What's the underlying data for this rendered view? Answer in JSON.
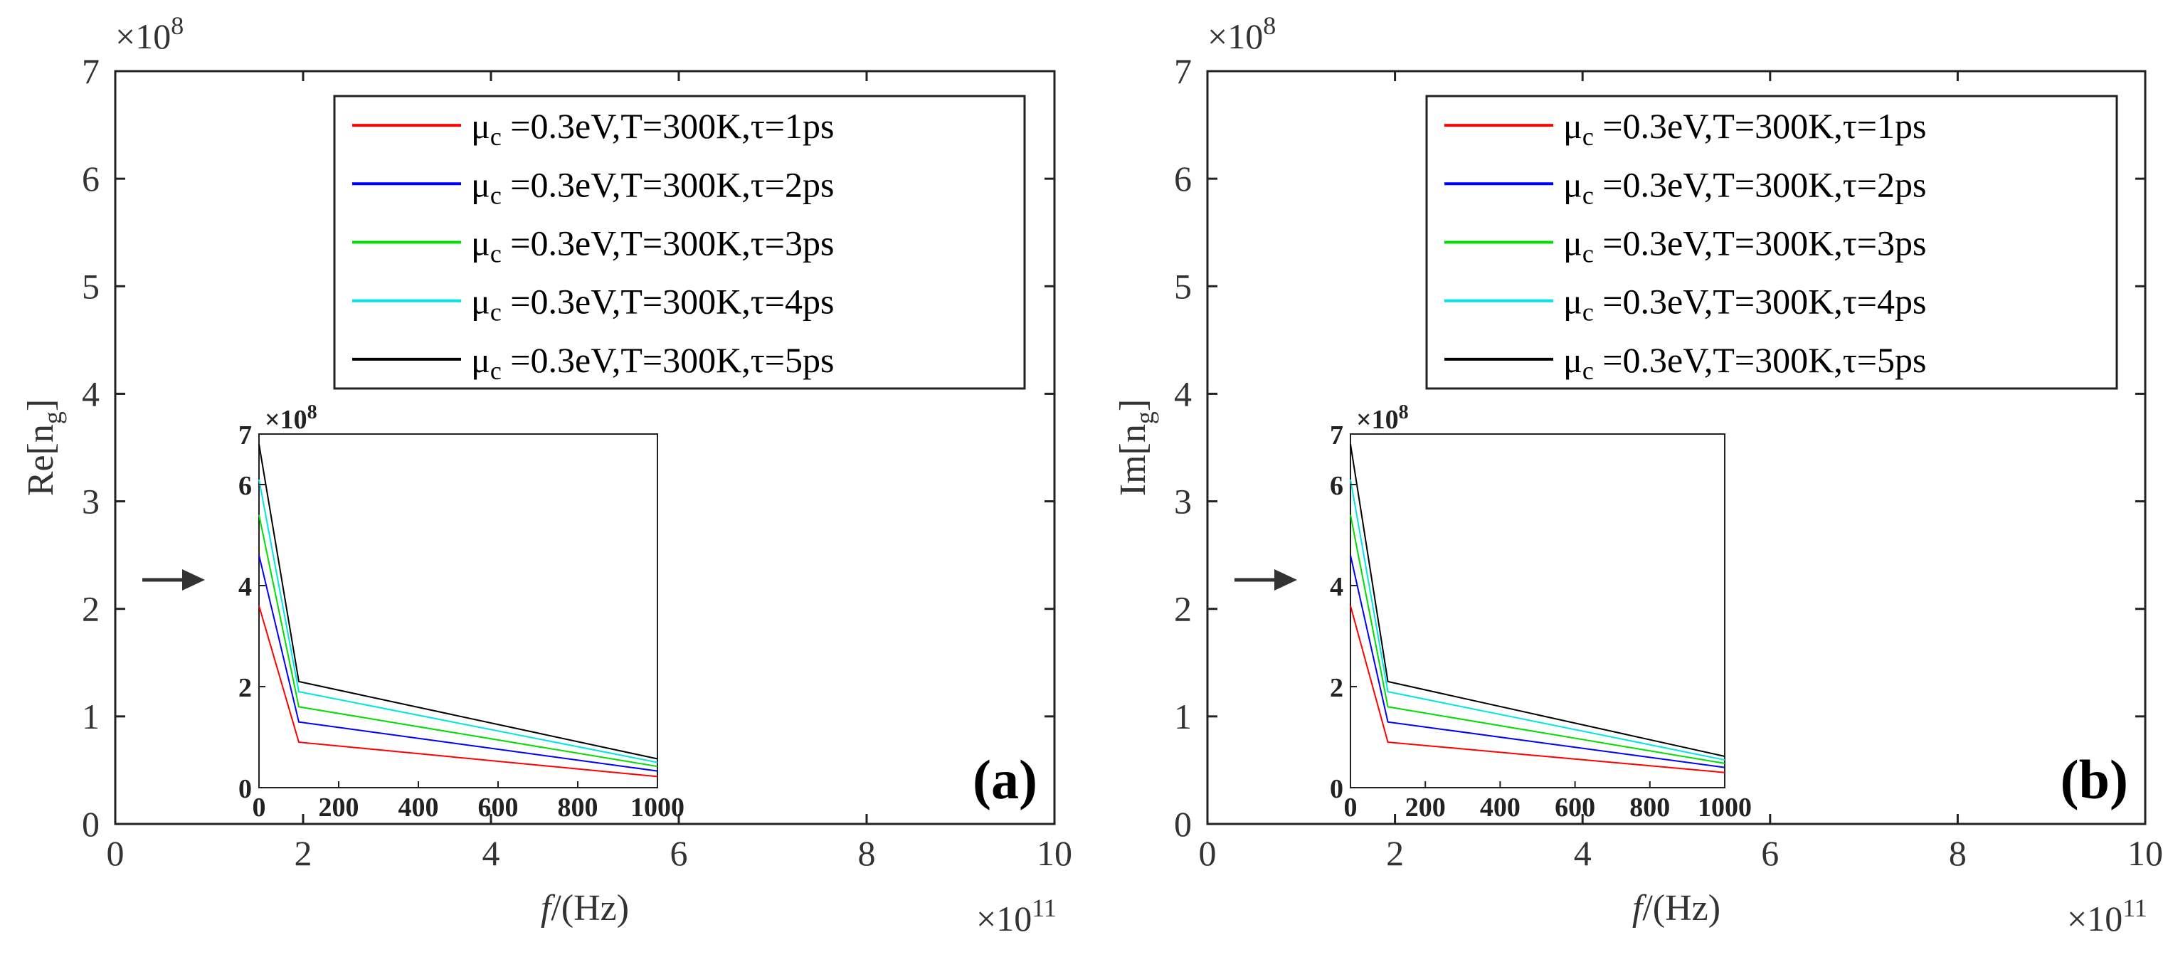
{
  "chart_data": [
    {
      "type": "line",
      "panel_label": "(a)",
      "ylabel": "Re[n",
      "ylabel_sub": "g",
      "ylabel_close": "]",
      "xlabel_italic": "f",
      "xlabel_rest": "/(Hz)",
      "x_exponent_text": "×10",
      "x_exponent_power": "11",
      "y_exponent_text": "×10",
      "y_exponent_power": "8",
      "xlim": [
        0,
        10
      ],
      "ylim": [
        0,
        7
      ],
      "xticks": [
        "0",
        "2",
        "4",
        "6",
        "8",
        "10"
      ],
      "yticks": [
        "0",
        "1",
        "2",
        "3",
        "4",
        "5",
        "6",
        "7"
      ],
      "series": [],
      "inset": {
        "xlim": [
          0,
          1000
        ],
        "ylim": [
          0,
          7
        ],
        "xticks": [
          "0",
          "200",
          "400",
          "600",
          "800",
          "1000"
        ],
        "yticks": [
          "0",
          "2",
          "4",
          "6",
          "7"
        ],
        "y_exponent_text": "×10",
        "y_exponent_power": "8",
        "x": [
          0,
          100,
          1000
        ],
        "series": [
          {
            "name": "τ=1ps",
            "color": "#ff0000",
            "values": [
              3.6,
              0.9,
              0.22
            ]
          },
          {
            "name": "τ=2ps",
            "color": "#0000ff",
            "values": [
              4.6,
              1.3,
              0.33
            ]
          },
          {
            "name": "τ=3ps",
            "color": "#00dd00",
            "values": [
              5.4,
              1.6,
              0.42
            ]
          },
          {
            "name": "τ=4ps",
            "color": "#00e5e5",
            "values": [
              6.1,
              1.9,
              0.5
            ]
          },
          {
            "name": "τ=5ps",
            "color": "#000000",
            "values": [
              6.8,
              2.1,
              0.57
            ]
          }
        ]
      }
    },
    {
      "type": "line",
      "panel_label": "(b)",
      "ylabel": "Im[n",
      "ylabel_sub": "g",
      "ylabel_close": "]",
      "xlabel_italic": "f",
      "xlabel_rest": "/(Hz)",
      "x_exponent_text": "×10",
      "x_exponent_power": "11",
      "y_exponent_text": "×10",
      "y_exponent_power": "8",
      "xlim": [
        0,
        10
      ],
      "ylim": [
        0,
        7
      ],
      "xticks": [
        "0",
        "2",
        "4",
        "6",
        "8",
        "10"
      ],
      "yticks": [
        "0",
        "1",
        "2",
        "3",
        "4",
        "5",
        "6",
        "7"
      ],
      "series": [],
      "inset": {
        "xlim": [
          0,
          1000
        ],
        "ylim": [
          0,
          7
        ],
        "xticks": [
          "0",
          "200",
          "400",
          "600",
          "800",
          "1000"
        ],
        "yticks": [
          "0",
          "2",
          "4",
          "6",
          "7"
        ],
        "y_exponent_text": "×10",
        "y_exponent_power": "8",
        "x": [
          0,
          100,
          1000
        ],
        "series": [
          {
            "name": "τ=1ps",
            "color": "#ff0000",
            "values": [
              3.6,
              0.9,
              0.3
            ]
          },
          {
            "name": "τ=2ps",
            "color": "#0000ff",
            "values": [
              4.6,
              1.3,
              0.4
            ]
          },
          {
            "name": "τ=3ps",
            "color": "#00dd00",
            "values": [
              5.4,
              1.6,
              0.48
            ]
          },
          {
            "name": "τ=4ps",
            "color": "#00e5e5",
            "values": [
              6.1,
              1.9,
              0.55
            ]
          },
          {
            "name": "τ=5ps",
            "color": "#000000",
            "values": [
              6.8,
              2.1,
              0.62
            ]
          }
        ]
      }
    }
  ],
  "legend": {
    "entries": [
      {
        "mu": "μ",
        "mu_sub": "c",
        "text": " =0.3eV,T=300K,τ=1ps",
        "color": "#ff0000"
      },
      {
        "mu": "μ",
        "mu_sub": "c",
        "text": " =0.3eV,T=300K,τ=2ps",
        "color": "#0000ff"
      },
      {
        "mu": "μ",
        "mu_sub": "c",
        "text": " =0.3eV,T=300K,τ=3ps",
        "color": "#00dd00"
      },
      {
        "mu": "μ",
        "mu_sub": "c",
        "text": " =0.3eV,T=300K,τ=4ps",
        "color": "#00e5e5"
      },
      {
        "mu": "μ",
        "mu_sub": "c",
        "text": " =0.3eV,T=300K,τ=5ps",
        "color": "#000000"
      }
    ]
  }
}
